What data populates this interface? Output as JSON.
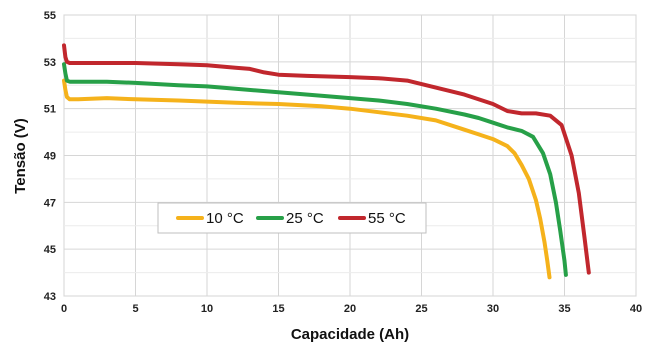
{
  "chart_data": {
    "type": "line",
    "title": "",
    "xlabel": "Capacidade (Ah)",
    "ylabel": "Tensão (V)",
    "xlim": [
      0,
      40
    ],
    "ylim": [
      43,
      55
    ],
    "xticks": [
      0,
      5,
      10,
      15,
      20,
      25,
      30,
      35,
      40
    ],
    "yticks": [
      43,
      45,
      47,
      49,
      51,
      53,
      55
    ],
    "grid": true,
    "legend_position": "lower-left",
    "series": [
      {
        "name": "10 °C",
        "color": "#f5b21b",
        "x": [
          0,
          0.1,
          0.2,
          0.4,
          1,
          3,
          5,
          8,
          10,
          12,
          15,
          18,
          20,
          22,
          24,
          26,
          28,
          29,
          30,
          31,
          31.5,
          32,
          32.5,
          33,
          33.3,
          33.6,
          33.8,
          33.95
        ],
        "y": [
          52.2,
          51.8,
          51.5,
          51.4,
          51.4,
          51.45,
          51.4,
          51.35,
          51.3,
          51.25,
          51.2,
          51.1,
          51.0,
          50.85,
          50.7,
          50.5,
          50.1,
          49.9,
          49.7,
          49.4,
          49.1,
          48.6,
          48.0,
          47.1,
          46.3,
          45.3,
          44.5,
          43.8
        ]
      },
      {
        "name": "25 °C",
        "color": "#27a048",
        "x": [
          0,
          0.1,
          0.2,
          0.4,
          1,
          3,
          5,
          8,
          10,
          12,
          15,
          18,
          20,
          22,
          24,
          26,
          28,
          29,
          30,
          31,
          32,
          32.8,
          33.5,
          34,
          34.4,
          34.7,
          35,
          35.1
        ],
        "y": [
          52.9,
          52.5,
          52.2,
          52.15,
          52.15,
          52.15,
          52.1,
          52.0,
          51.95,
          51.85,
          51.7,
          51.55,
          51.45,
          51.35,
          51.2,
          51.0,
          50.75,
          50.6,
          50.4,
          50.2,
          50.05,
          49.8,
          49.1,
          48.2,
          47.0,
          45.8,
          44.5,
          43.9
        ]
      },
      {
        "name": "55 °C",
        "color": "#c1272d",
        "x": [
          0,
          0.1,
          0.2,
          0.4,
          1,
          3,
          5,
          8,
          10,
          12,
          13,
          14,
          15,
          17,
          20,
          22,
          24,
          26,
          28,
          30,
          31,
          32,
          33,
          34,
          34.8,
          35.5,
          36,
          36.4,
          36.7
        ],
        "y": [
          53.7,
          53.2,
          53.0,
          52.95,
          52.95,
          52.95,
          52.95,
          52.9,
          52.85,
          52.75,
          52.7,
          52.55,
          52.45,
          52.4,
          52.35,
          52.3,
          52.2,
          51.9,
          51.6,
          51.2,
          50.9,
          50.8,
          50.8,
          50.7,
          50.3,
          49.0,
          47.4,
          45.5,
          44.0
        ]
      }
    ]
  }
}
